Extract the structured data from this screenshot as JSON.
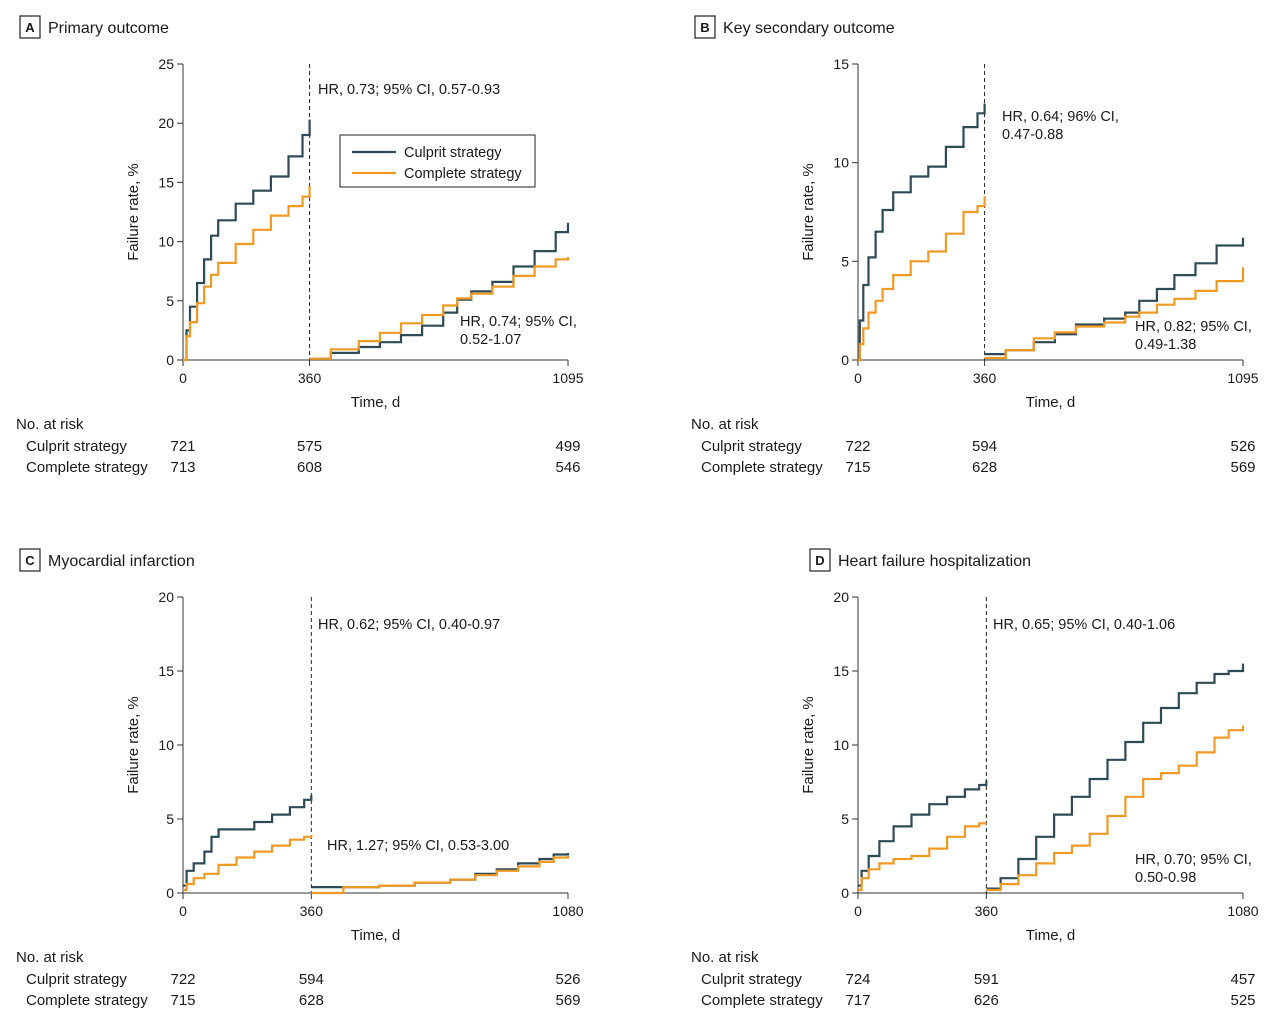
{
  "colors": {
    "culprit": "#2f4a57",
    "complete": "#f09a26",
    "axis": "#333333"
  },
  "risk_header": "No. at risk",
  "legend": {
    "culprit": "Culprit strategy",
    "complete": "Complete strategy"
  },
  "chart_data": [
    {
      "letter": "A",
      "title": "Primary outcome",
      "type": "line",
      "xlabel": "Time, d",
      "ylabel": "Failure rate, %",
      "xticks": [
        0,
        360,
        1095
      ],
      "yticks": [
        0,
        5,
        10,
        15,
        20,
        25
      ],
      "ylim": [
        0,
        25
      ],
      "landmark_day": 360,
      "annotations": [
        {
          "text": [
            "HR, 0.73; 95% CI, 0.57-0.93"
          ],
          "anchor": "top-of-first-period"
        },
        {
          "text": [
            "HR, 0.74; 95% CI,",
            "0.52-1.07"
          ],
          "anchor": "lower-right-of-second-period"
        }
      ],
      "series": [
        {
          "name": "Culprit strategy",
          "segments": [
            {
              "x": [
                0,
                10,
                20,
                40,
                60,
                80,
                100,
                150,
                200,
                250,
                300,
                340,
                360
              ],
              "y": [
                0,
                2.5,
                4.5,
                6.5,
                8.5,
                10.5,
                11.8,
                13.2,
                14.3,
                15.5,
                17.2,
                19.0,
                20.3
              ]
            },
            {
              "x": [
                360,
                420,
                500,
                560,
                620,
                680,
                740,
                780,
                820,
                880,
                940,
                1000,
                1060,
                1095
              ],
              "y": [
                0.1,
                0.6,
                1.1,
                1.5,
                2.1,
                2.9,
                4.0,
                5.1,
                5.8,
                6.6,
                7.9,
                9.2,
                10.8,
                11.6
              ]
            }
          ]
        },
        {
          "name": "Complete strategy",
          "segments": [
            {
              "x": [
                0,
                10,
                20,
                40,
                60,
                80,
                100,
                150,
                200,
                250,
                300,
                340,
                360
              ],
              "y": [
                0,
                2.0,
                3.2,
                4.8,
                6.2,
                7.2,
                8.2,
                9.8,
                11.0,
                12.2,
                13.0,
                13.8,
                14.7
              ]
            },
            {
              "x": [
                360,
                420,
                500,
                560,
                620,
                680,
                740,
                780,
                820,
                880,
                940,
                1000,
                1060,
                1095
              ],
              "y": [
                0.1,
                0.9,
                1.6,
                2.3,
                3.1,
                3.8,
                4.6,
                5.2,
                5.6,
                6.2,
                7.1,
                7.9,
                8.5,
                8.7
              ]
            }
          ]
        }
      ],
      "risk": {
        "ticks": [
          0,
          360,
          1095
        ],
        "culprit": [
          "721",
          "575",
          "499"
        ],
        "complete": [
          "713",
          "608",
          "546"
        ]
      }
    },
    {
      "letter": "B",
      "title": "Key secondary outcome",
      "type": "line",
      "xlabel": "Time, d",
      "ylabel": "Failure rate, %",
      "xticks": [
        0,
        360,
        1095
      ],
      "yticks": [
        0,
        5,
        10,
        15
      ],
      "ylim": [
        0,
        15
      ],
      "landmark_day": 360,
      "annotations": [
        {
          "text": [
            "HR, 0.64; 96% CI,",
            "0.47-0.88"
          ],
          "anchor": "upper-right-of-first-period"
        },
        {
          "text": [
            "HR, 0.82; 95% CI,",
            "0.49-1.38"
          ],
          "anchor": "lower-right-of-second-period"
        }
      ],
      "series": [
        {
          "name": "Culprit strategy",
          "segments": [
            {
              "x": [
                0,
                5,
                15,
                30,
                50,
                70,
                100,
                150,
                200,
                250,
                300,
                340,
                360
              ],
              "y": [
                0,
                2.0,
                3.8,
                5.2,
                6.5,
                7.6,
                8.5,
                9.3,
                9.8,
                10.8,
                11.8,
                12.5,
                13.0
              ]
            },
            {
              "x": [
                360,
                420,
                500,
                560,
                620,
                700,
                760,
                800,
                850,
                900,
                960,
                1020,
                1095
              ],
              "y": [
                0.3,
                0.5,
                0.9,
                1.3,
                1.8,
                2.1,
                2.4,
                3.0,
                3.6,
                4.3,
                4.9,
                5.8,
                6.2
              ]
            }
          ]
        },
        {
          "name": "Complete strategy",
          "segments": [
            {
              "x": [
                0,
                5,
                15,
                30,
                50,
                70,
                100,
                150,
                200,
                250,
                300,
                340,
                360
              ],
              "y": [
                0,
                0.8,
                1.6,
                2.4,
                3.0,
                3.6,
                4.3,
                5.0,
                5.5,
                6.4,
                7.5,
                7.8,
                8.3
              ]
            },
            {
              "x": [
                360,
                420,
                500,
                560,
                620,
                700,
                760,
                800,
                850,
                900,
                960,
                1020,
                1095
              ],
              "y": [
                0.1,
                0.5,
                1.1,
                1.4,
                1.7,
                1.9,
                2.2,
                2.4,
                2.8,
                3.1,
                3.5,
                4.0,
                4.7
              ]
            }
          ]
        }
      ],
      "risk": {
        "ticks": [
          0,
          360,
          1095
        ],
        "culprit": [
          "722",
          "594",
          "526"
        ],
        "complete": [
          "715",
          "628",
          "569"
        ]
      }
    },
    {
      "letter": "C",
      "title": "Myocardial infarction",
      "type": "line",
      "xlabel": "Time, d",
      "ylabel": "Failure rate, %",
      "xticks": [
        0,
        360,
        1080
      ],
      "yticks": [
        0,
        5,
        10,
        15,
        20
      ],
      "ylim": [
        0,
        20
      ],
      "landmark_day": 360,
      "annotations": [
        {
          "text": [
            "HR, 0.62; 95% CI, 0.40-0.97"
          ],
          "anchor": "top-of-first-period"
        },
        {
          "text": [
            "HR, 1.27; 95% CI, 0.53-3.00"
          ],
          "anchor": "above-second-period-curves"
        }
      ],
      "series": [
        {
          "name": "Culprit strategy",
          "segments": [
            {
              "x": [
                0,
                10,
                30,
                60,
                80,
                100,
                150,
                200,
                250,
                300,
                340,
                360
              ],
              "y": [
                0.5,
                1.5,
                2.0,
                2.8,
                3.8,
                4.3,
                4.3,
                4.8,
                5.3,
                5.8,
                6.3,
                6.6
              ]
            },
            {
              "x": [
                360,
                450,
                550,
                650,
                750,
                820,
                880,
                940,
                1000,
                1040,
                1080
              ],
              "y": [
                0.4,
                0.4,
                0.5,
                0.7,
                0.9,
                1.3,
                1.6,
                2.0,
                2.3,
                2.6,
                2.7
              ]
            }
          ]
        },
        {
          "name": "Complete strategy",
          "segments": [
            {
              "x": [
                0,
                10,
                30,
                60,
                100,
                150,
                200,
                250,
                300,
                340,
                360
              ],
              "y": [
                0.2,
                0.6,
                1.0,
                1.3,
                1.9,
                2.4,
                2.8,
                3.2,
                3.6,
                3.8,
                3.9
              ]
            },
            {
              "x": [
                360,
                450,
                550,
                650,
                750,
                820,
                880,
                940,
                1000,
                1040,
                1080
              ],
              "y": [
                0,
                0.4,
                0.5,
                0.7,
                0.9,
                1.2,
                1.5,
                1.8,
                2.1,
                2.4,
                2.5
              ]
            }
          ]
        }
      ],
      "risk": {
        "ticks": [
          0,
          360,
          1080
        ],
        "culprit": [
          "722",
          "594",
          "526"
        ],
        "complete": [
          "715",
          "628",
          "569"
        ]
      }
    },
    {
      "letter": "D",
      "title": "Heart failure hospitalization",
      "type": "line",
      "xlabel": "Time, d",
      "ylabel": "Failure rate, %",
      "xticks": [
        0,
        360,
        1080
      ],
      "yticks": [
        0,
        5,
        10,
        15,
        20
      ],
      "ylim": [
        0,
        20
      ],
      "landmark_day": 360,
      "annotations": [
        {
          "text": [
            "HR, 0.65; 95% CI, 0.40-1.06"
          ],
          "anchor": "top-of-first-period"
        },
        {
          "text": [
            "HR, 0.70; 95% CI,",
            "0.50-0.98"
          ],
          "anchor": "lower-right-of-second-period"
        }
      ],
      "series": [
        {
          "name": "Culprit strategy",
          "segments": [
            {
              "x": [
                0,
                10,
                30,
                60,
                100,
                150,
                200,
                250,
                300,
                340,
                360
              ],
              "y": [
                0.5,
                1.5,
                2.5,
                3.5,
                4.5,
                5.3,
                6.0,
                6.5,
                7.0,
                7.3,
                7.6
              ]
            },
            {
              "x": [
                360,
                400,
                450,
                500,
                550,
                600,
                650,
                700,
                750,
                800,
                850,
                900,
                950,
                1000,
                1040,
                1080
              ],
              "y": [
                0.3,
                1.0,
                2.3,
                3.8,
                5.3,
                6.5,
                7.7,
                9.0,
                10.2,
                11.5,
                12.5,
                13.5,
                14.2,
                14.8,
                15.0,
                15.5
              ]
            }
          ]
        },
        {
          "name": "Complete strategy",
          "segments": [
            {
              "x": [
                0,
                10,
                30,
                60,
                100,
                150,
                200,
                250,
                300,
                340,
                360
              ],
              "y": [
                0.2,
                1.0,
                1.6,
                2.0,
                2.3,
                2.5,
                3.0,
                3.8,
                4.5,
                4.7,
                4.7
              ]
            },
            {
              "x": [
                360,
                400,
                450,
                500,
                550,
                600,
                650,
                700,
                750,
                800,
                850,
                900,
                950,
                1000,
                1040,
                1080
              ],
              "y": [
                0.2,
                0.6,
                1.2,
                2.0,
                2.7,
                3.2,
                4.0,
                5.2,
                6.5,
                7.7,
                8.1,
                8.6,
                9.5,
                10.5,
                11.0,
                11.3
              ]
            }
          ]
        }
      ],
      "risk": {
        "ticks": [
          0,
          360,
          1080
        ],
        "culprit": [
          "724",
          "591",
          "457"
        ],
        "complete": [
          "717",
          "626",
          "525"
        ]
      }
    }
  ]
}
